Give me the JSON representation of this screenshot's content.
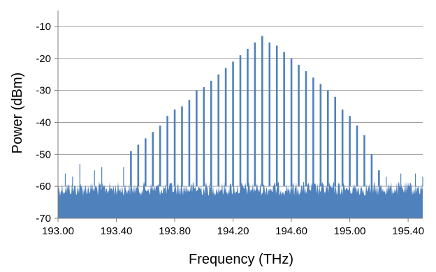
{
  "chart_data": {
    "type": "line",
    "title": "",
    "xlabel": "Frequency (THz)",
    "ylabel": "Power (dBm)",
    "xlim": [
      193.0,
      195.5
    ],
    "ylim": [
      -70,
      -5
    ],
    "x_ticks": [
      193.0,
      193.4,
      193.8,
      194.2,
      194.6,
      195.0,
      195.4
    ],
    "x_tick_labels": [
      "193.00",
      "193.40",
      "193.80",
      "194.20",
      "194.60",
      "195.00",
      "195.40"
    ],
    "y_ticks": [
      -70,
      -60,
      -50,
      -40,
      -30,
      -20,
      -10
    ],
    "y_tick_labels": [
      "-70",
      "-60",
      "-50",
      "-40",
      "-30",
      "-20",
      "-10"
    ],
    "grid": true,
    "legend": "none",
    "series_color": "#4f81bd",
    "noise_floor_dbm": -60,
    "comb_spacing_thz": 0.05,
    "comb_lines": {
      "frequency_thz": [
        193.5,
        193.55,
        193.6,
        193.65,
        193.7,
        193.75,
        193.8,
        193.85,
        193.9,
        193.95,
        194.0,
        194.05,
        194.1,
        194.15,
        194.2,
        194.25,
        194.3,
        194.35,
        194.4,
        194.45,
        194.5,
        194.55,
        194.6,
        194.65,
        194.7,
        194.75,
        194.8,
        194.85,
        194.9,
        194.95,
        195.0,
        195.05,
        195.1,
        195.15,
        195.2
      ],
      "power_dbm": [
        -49,
        -47,
        -45,
        -43,
        -41,
        -38,
        -36,
        -35,
        -33,
        -30,
        -29,
        -27,
        -25,
        -23,
        -21,
        -19,
        -17,
        -15,
        -13,
        -15,
        -16,
        -18,
        -20,
        -22,
        -24,
        -26,
        -28,
        -30,
        -32,
        -36,
        -38,
        -41,
        -44,
        -50,
        -55
      ]
    },
    "noise_spurs": {
      "frequency_thz": [
        193.05,
        193.1,
        193.15,
        193.25,
        193.3,
        193.45,
        195.25,
        195.35,
        195.45,
        195.5
      ],
      "power_dbm": [
        -56,
        -57,
        -53,
        -55,
        -54,
        -54,
        -57,
        -56,
        -56,
        -57
      ]
    }
  }
}
